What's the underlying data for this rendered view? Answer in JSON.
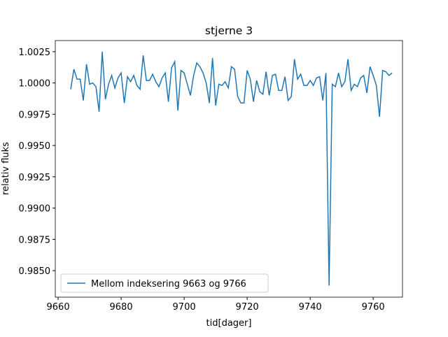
{
  "chart_data": {
    "type": "line",
    "title": "stjerne 3",
    "x_label": "tid[dager]",
    "y_label": "relativ fluks",
    "x": [
      9664,
      9665,
      9666,
      9667,
      9668,
      9669,
      9670,
      9671,
      9672,
      9673,
      9674,
      9675,
      9676,
      9677,
      9678,
      9679,
      9680,
      9681,
      9682,
      9683,
      9684,
      9685,
      9686,
      9687,
      9688,
      9689,
      9690,
      9691,
      9692,
      9693,
      9694,
      9695,
      9696,
      9697,
      9698,
      9699,
      9700,
      9701,
      9702,
      9703,
      9704,
      9705,
      9706,
      9707,
      9708,
      9709,
      9710,
      9711,
      9712,
      9713,
      9714,
      9715,
      9716,
      9717,
      9718,
      9719,
      9720,
      9721,
      9722,
      9723,
      9724,
      9725,
      9726,
      9727,
      9728,
      9729,
      9730,
      9731,
      9732,
      9733,
      9734,
      9735,
      9736,
      9737,
      9738,
      9739,
      9740,
      9741,
      9742,
      9743,
      9744,
      9745,
      9746,
      9747,
      9748,
      9749,
      9750,
      9751,
      9752,
      9753,
      9754,
      9755,
      9756,
      9757,
      9758,
      9759,
      9760,
      9761,
      9762,
      9763,
      9764,
      9765,
      9766
    ],
    "series": [
      {
        "name": "Mellom indeksering 9663 og 9766",
        "color": "#1f77b4",
        "values": [
          0.9995,
          1.0011,
          1.0003,
          1.0003,
          0.9986,
          1.0015,
          0.9999,
          1.0,
          0.9997,
          0.9977,
          1.0025,
          0.9987,
          0.9999,
          1.0006,
          0.9996,
          1.0004,
          1.0008,
          0.9984,
          1.0005,
          1.0001,
          1.0006,
          0.9998,
          0.9995,
          1.0022,
          1.0002,
          1.0002,
          1.0007,
          1.0001,
          0.9997,
          1.0004,
          1.0008,
          0.9985,
          1.0012,
          1.0017,
          0.9978,
          1.001,
          1.0008,
          0.9999,
          0.999,
          1.0006,
          1.0016,
          1.0013,
          1.0008,
          1.0,
          0.9984,
          1.002,
          0.9982,
          0.9999,
          0.9998,
          1.0001,
          0.9996,
          1.0013,
          1.0011,
          0.9989,
          0.9984,
          0.9984,
          1.001,
          1.0003,
          0.9985,
          1.0002,
          0.9993,
          0.9991,
          1.0009,
          0.999,
          1.0006,
          1.0007,
          0.9994,
          0.9994,
          1.0005,
          0.9986,
          0.9989,
          1.0019,
          1.0003,
          1.0007,
          0.9998,
          0.9998,
          1.0002,
          0.9998,
          1.0004,
          1.0005,
          0.9986,
          1.0008,
          0.9838,
          0.9999,
          0.9997,
          1.0008,
          0.9997,
          1.0001,
          1.0019,
          0.9994,
          0.9999,
          0.9997,
          1.0004,
          1.0006,
          0.9992,
          1.0013,
          1.0006,
          0.9998,
          0.9973,
          1.001,
          1.0009,
          1.0006,
          1.0008
        ]
      }
    ],
    "xlim": [
      9659.1,
      9769.3
    ],
    "xticks": [
      9660,
      9680,
      9700,
      9720,
      9740,
      9760
    ],
    "ylim": [
      0.98288,
      1.00339
    ],
    "yticks": [
      {
        "value": 0.985,
        "label": "0.9850"
      },
      0.9875,
      {
        "value": 0.99,
        "label": "0.9900"
      },
      0.9925,
      {
        "value": 0.995,
        "label": "0.9950"
      },
      0.9975,
      {
        "value": 1.0,
        "label": "1.0000"
      },
      1.0025
    ],
    "grid": false,
    "legend": "lower left"
  }
}
